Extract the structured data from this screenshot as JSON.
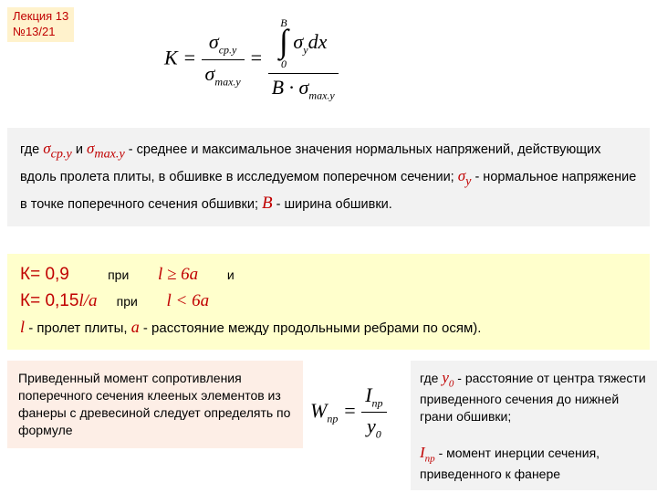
{
  "lecture": {
    "line1": "Лекция 13",
    "line2": "№13/21"
  },
  "formula_main": {
    "lhs": "K",
    "eq": "=",
    "frac1_num": "σ",
    "frac1_num_sub": "ср.y",
    "frac1_den": "σ",
    "frac1_den_sub": "max.y",
    "int_upper": "B",
    "int_lower": "0",
    "integrand": "σ",
    "integrand_sub": "y",
    "dx": "dx",
    "frac2_den_B": "B",
    "frac2_den_dot": " · ",
    "frac2_den_sig": "σ",
    "frac2_den_sub": "max.y"
  },
  "gray": {
    "t1": "где ",
    "s1": "σ",
    "s1sub": "ср.у",
    "t2": "   и ",
    "s2": "σ",
    "s2sub": "max.у",
    "t3": "   - среднее и максимальное значения нормальных напряжений, действующих вдоль пролета плиты, в обшивке в исследуемом поперечном сечении; ",
    "s3": "σ",
    "s3sub": "у",
    "t4": "   - нормальное напряжение в точке поперечного сечения обшивки;   ",
    "B": "B",
    "t5": " - ширина обшивки."
  },
  "yellow": {
    "k1_left": "К= 0,9",
    "k1_pri": "при",
    "k1_cond": "l ≥ 6a",
    "k1_and": "и",
    "k2_left": "К= 0,15",
    "k2_la": "l/a",
    "k2_pri": "при",
    "k2_cond": "l < 6a",
    "desc_l": "l",
    "desc_t1": " - пролет плиты, ",
    "desc_a": "a",
    "desc_t2": " - расстояние между продольными ребрами по осям)."
  },
  "bottom_left": {
    "text": "Приведенный момент сопротивления поперечного сечения клееных элементов из фанеры с древесиной следует определять по формуле"
  },
  "formula_w": {
    "W": "W",
    "Wsub": "пр",
    "eq": "=",
    "num": "I",
    "num_sub": "пр",
    "den": "y",
    "den_sub": "0"
  },
  "bottom_right": {
    "t1": "где ",
    "y0": "y",
    "y0sub": "0",
    "t2": " - расстояние от центра тяжести приведенного сечения до нижней грани обшивки;",
    "Ipr": "I",
    "Iprsub": "пр",
    "t3": " - момент инерции сечения, приведенного к фанере"
  },
  "colors": {
    "red": "#c00000",
    "gray_bg": "#f2f2f2",
    "yellow_bg": "#ffffcc",
    "peach_bg": "#fdeee6",
    "badge_bg": "#fff2cc"
  }
}
